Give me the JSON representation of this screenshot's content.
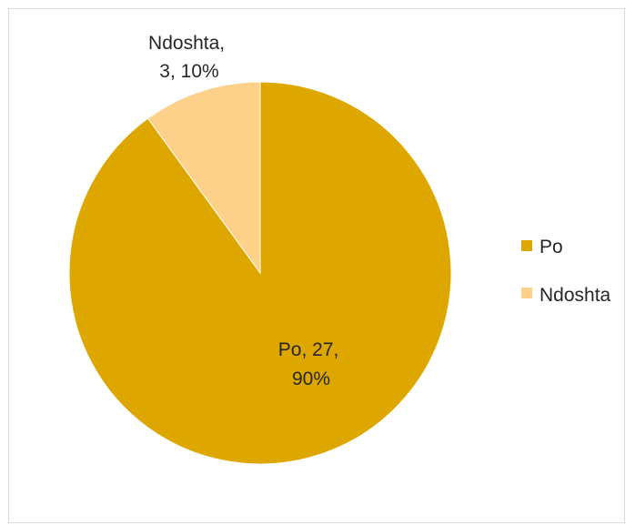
{
  "chart_data": {
    "type": "pie",
    "title": "",
    "categories": [
      "Po",
      "Ndoshta"
    ],
    "values": [
      27,
      3
    ],
    "percentages": [
      90,
      10
    ],
    "colors": [
      "#DDA700",
      "#FDD18A"
    ],
    "data_labels": [
      {
        "category": "Po",
        "line1": "Po, 27,",
        "line2": "90%"
      },
      {
        "category": "Ndoshta",
        "line1": "Ndoshta,",
        "line2": "3, 10%"
      }
    ],
    "legend": {
      "placement": "right",
      "entries": [
        "Po",
        "Ndoshta"
      ]
    }
  }
}
